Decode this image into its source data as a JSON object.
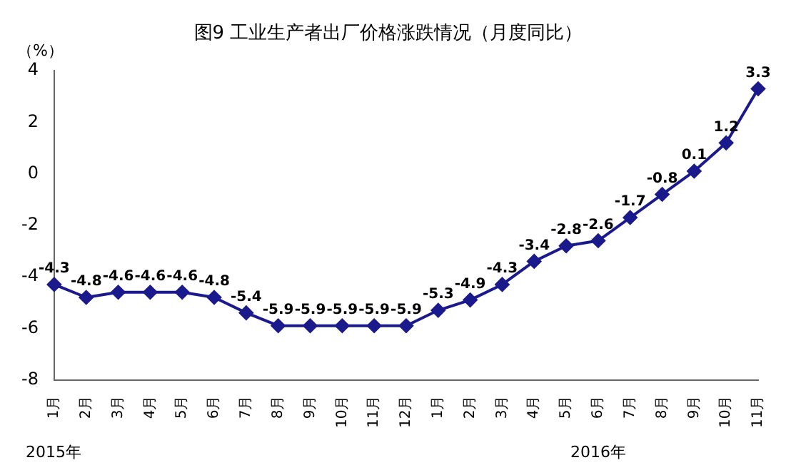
{
  "chart_data": {
    "type": "line",
    "title": "图9 工业生产者出厂价格涨跌情况（月度同比）",
    "ylabel": "（%）",
    "categories": [
      "1月",
      "2月",
      "3月",
      "4月",
      "5月",
      "6月",
      "7月",
      "8月",
      "9月",
      "10月",
      "11月",
      "12月",
      "1月",
      "2月",
      "3月",
      "4月",
      "5月",
      "6月",
      "7月",
      "8月",
      "9月",
      "10月",
      "11月"
    ],
    "series": [
      {
        "color": "#1a1a8c",
        "values": [
          -4.3,
          -4.8,
          -4.6,
          -4.6,
          -4.6,
          -4.8,
          -5.4,
          -5.9,
          -5.9,
          -5.9,
          -5.9,
          -5.9,
          -5.3,
          -4.9,
          -4.3,
          -3.4,
          -2.8,
          -2.6,
          -1.7,
          -0.8,
          0.1,
          1.2,
          3.3
        ]
      }
    ],
    "ylim": [
      -8,
      4
    ],
    "yticks": [
      -8,
      -6,
      -4,
      -2,
      0,
      2,
      4
    ],
    "grid": false,
    "legend": false,
    "marker": "diamond",
    "line_style": "solid",
    "data_labels": true,
    "annotations": [
      "2015年",
      "2016年"
    ]
  }
}
